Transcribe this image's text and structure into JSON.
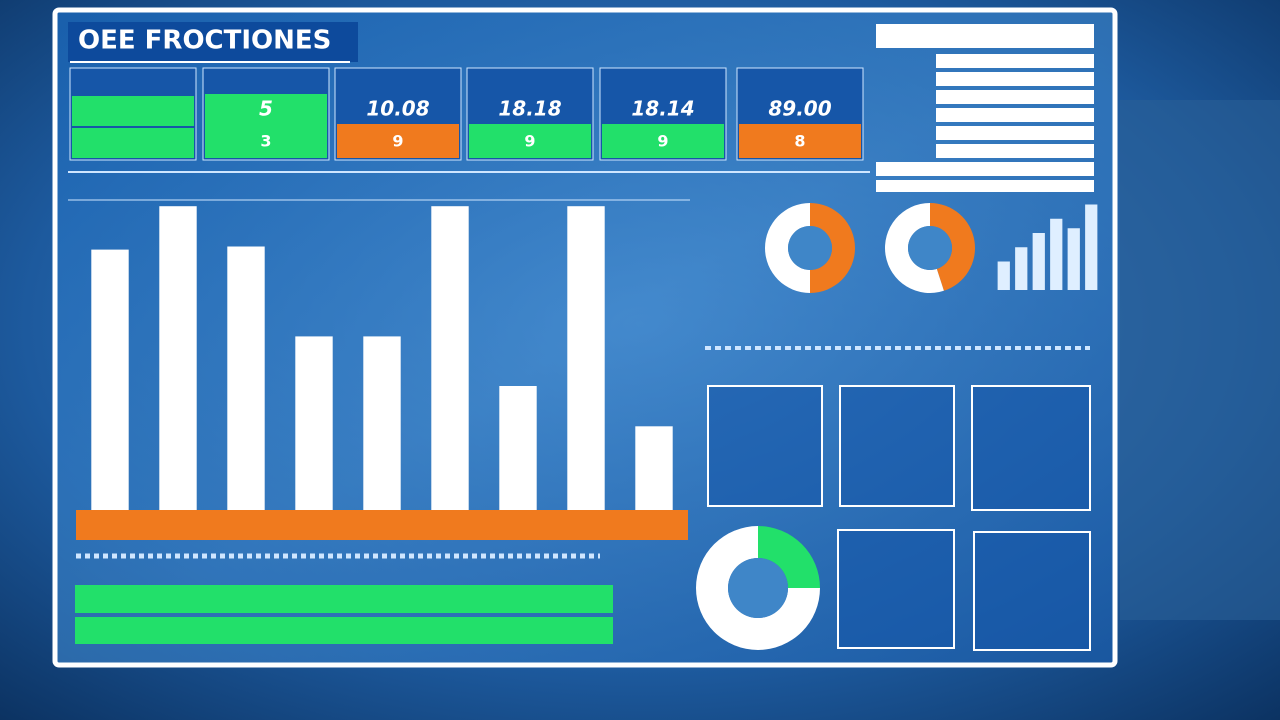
{
  "header": {
    "title": "OEE FROCTIONES"
  },
  "kpis": [
    {
      "value": "5",
      "sub": "3",
      "color": "#22e06a"
    },
    {
      "value": "10.08",
      "sub": "9",
      "color": "#f07a1e"
    },
    {
      "value": "18.18",
      "sub": "9",
      "color": "#22e06a"
    },
    {
      "value": "18.14",
      "sub": "9",
      "color": "#22e06a"
    },
    {
      "value": "89.00",
      "sub": "8",
      "color": "#f07a1e"
    }
  ],
  "chart_data": [
    {
      "type": "bar",
      "categories": [
        null,
        null,
        null,
        null,
        null,
        null,
        null,
        null,
        null
      ],
      "values": [
        84,
        98,
        85,
        56,
        56,
        98,
        40,
        98,
        27
      ],
      "color": "#ffffff",
      "ylim": [
        0,
        100
      ]
    },
    {
      "type": "pie",
      "values": [
        50,
        50
      ],
      "colors": [
        "#f07a1e",
        "#ffffff"
      ]
    },
    {
      "type": "pie",
      "values": [
        45,
        55
      ],
      "colors": [
        "#f07a1e",
        "#ffffff"
      ]
    },
    {
      "type": "pie",
      "values": [
        25,
        75
      ],
      "colors": [
        "#22e06a",
        "#ffffff"
      ]
    },
    {
      "type": "bar",
      "categories": [
        null,
        null,
        null,
        null,
        null,
        null
      ],
      "values": [
        30,
        45,
        60,
        75,
        65,
        90
      ],
      "color": "#dfefff",
      "ylim": [
        0,
        100
      ]
    }
  ]
}
